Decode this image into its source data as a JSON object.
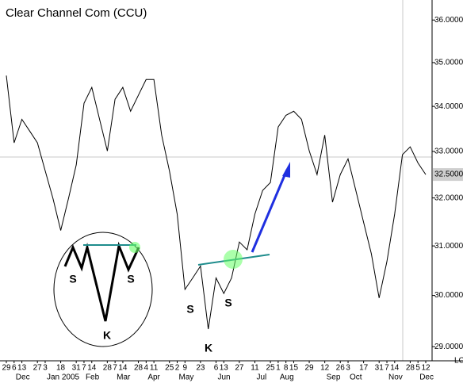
{
  "chart_data": {
    "type": "line",
    "title": "Clear Channel Com (CCU)",
    "log": true,
    "color": "#000000",
    "categories": [
      "29",
      "6",
      "13",
      null,
      "27",
      "3",
      null,
      "18",
      null,
      "31",
      "7",
      "14",
      null,
      "28",
      "7",
      "14",
      null,
      "28",
      "4",
      "11",
      null,
      "25",
      "2",
      "9",
      null,
      "23",
      null,
      "6",
      "13",
      null,
      "27",
      null,
      "11",
      null,
      "25",
      "1",
      "8",
      "15",
      null,
      "29",
      null,
      "12",
      null,
      "26",
      "3",
      null,
      "17",
      null,
      "31",
      "7",
      "14",
      null,
      "28",
      "5",
      "12"
    ],
    "month_labels": [
      null,
      "Dec",
      null,
      null,
      null,
      "Jan 2005",
      null,
      null,
      null,
      null,
      "Feb",
      null,
      null,
      null,
      "Mar",
      null,
      null,
      null,
      "Apr",
      null,
      null,
      null,
      "May",
      null,
      null,
      null,
      null,
      "Jun",
      null,
      null,
      null,
      null,
      "Jul",
      null,
      null,
      "Aug",
      null,
      null,
      null,
      null,
      null,
      "Sep",
      null,
      null,
      "Oct",
      null,
      null,
      null,
      null,
      "Nov",
      null,
      null,
      null,
      "Dec",
      null
    ],
    "values": [
      34.7,
      33.19,
      33.71,
      33.45,
      33.19,
      32.58,
      31.99,
      31.32,
      31.99,
      32.71,
      34.07,
      34.43,
      33.71,
      33.01,
      34.16,
      34.43,
      33.89,
      34.25,
      34.61,
      34.61,
      33.36,
      32.58,
      31.66,
      30.12,
      30.35,
      30.59,
      29.34,
      30.35,
      30.04,
      30.35,
      31.08,
      30.92,
      31.66,
      32.16,
      32.33,
      33.54,
      33.8,
      33.89,
      33.71,
      33.01,
      32.5,
      33.36,
      31.91,
      32.5,
      32.84,
      32.16,
      31.49,
      30.84,
      29.95,
      30.68,
      31.66,
      32.93,
      33.1,
      32.75,
      32.5
    ],
    "ylim": [
      28.73,
      36.48
    ],
    "yticks": [
      {
        "value": 29,
        "label": "29.0000"
      },
      {
        "value": 30,
        "label": "30.0000"
      },
      {
        "value": 31,
        "label": "31.0000"
      },
      {
        "value": 32,
        "label": "32.0000"
      },
      {
        "value": 33,
        "label": "33.0000"
      },
      {
        "value": 34,
        "label": "34.0000"
      },
      {
        "value": 35,
        "label": "35.0000"
      },
      {
        "value": 36,
        "label": "36.0000"
      }
    ],
    "last_label": {
      "value": 32.5,
      "label": "32.5000"
    },
    "annotations": [
      "S",
      "S",
      "K",
      "S",
      "S",
      "K"
    ],
    "corner_text": "LC"
  }
}
